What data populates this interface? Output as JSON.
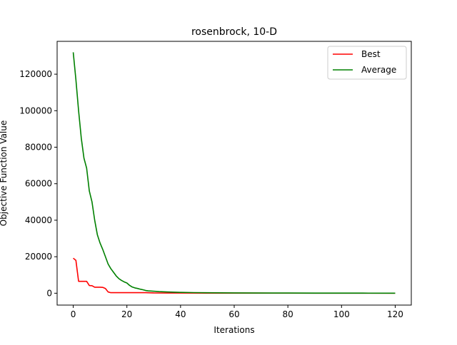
{
  "chart_data": {
    "type": "line",
    "title": "rosenbrock, 10-D",
    "xlabel": "Iterations",
    "ylabel": "Objective Function Value",
    "xlim": [
      -6,
      126
    ],
    "ylim": [
      -6500,
      138000
    ],
    "x_ticks": [
      0,
      20,
      40,
      60,
      80,
      100,
      120
    ],
    "y_ticks": [
      0,
      20000,
      40000,
      60000,
      80000,
      100000,
      120000
    ],
    "grid": false,
    "legend_position": "top-right",
    "series": [
      {
        "name": "Best",
        "color": "#ff0000",
        "points": [
          [
            0,
            19200
          ],
          [
            1,
            18000
          ],
          [
            2,
            6500
          ],
          [
            3,
            6500
          ],
          [
            4,
            6500
          ],
          [
            5,
            6500
          ],
          [
            6,
            4200
          ],
          [
            7,
            4100
          ],
          [
            8,
            3300
          ],
          [
            9,
            3300
          ],
          [
            10,
            3300
          ],
          [
            11,
            3200
          ],
          [
            12,
            2600
          ],
          [
            13,
            700
          ],
          [
            14,
            300
          ],
          [
            15,
            300
          ],
          [
            16,
            300
          ],
          [
            17,
            300
          ],
          [
            18,
            300
          ],
          [
            19,
            300
          ],
          [
            20,
            300
          ],
          [
            21,
            300
          ],
          [
            22,
            300
          ],
          [
            23,
            300
          ],
          [
            24,
            300
          ],
          [
            25,
            300
          ],
          [
            26,
            300
          ],
          [
            27,
            300
          ],
          [
            28,
            250
          ],
          [
            29,
            200
          ],
          [
            30,
            150
          ],
          [
            35,
            120
          ],
          [
            40,
            100
          ],
          [
            50,
            80
          ],
          [
            60,
            60
          ],
          [
            70,
            50
          ],
          [
            80,
            40
          ],
          [
            90,
            30
          ],
          [
            100,
            20
          ],
          [
            110,
            15
          ],
          [
            120,
            10
          ]
        ]
      },
      {
        "name": "Average",
        "color": "#008000",
        "points": [
          [
            0,
            132000
          ],
          [
            1,
            117000
          ],
          [
            2,
            100000
          ],
          [
            3,
            85000
          ],
          [
            4,
            74000
          ],
          [
            5,
            68500
          ],
          [
            6,
            56000
          ],
          [
            7,
            50000
          ],
          [
            8,
            40000
          ],
          [
            9,
            32000
          ],
          [
            10,
            27500
          ],
          [
            11,
            24000
          ],
          [
            12,
            20000
          ],
          [
            13,
            16000
          ],
          [
            14,
            13500
          ],
          [
            15,
            11500
          ],
          [
            16,
            9500
          ],
          [
            17,
            8000
          ],
          [
            18,
            7000
          ],
          [
            19,
            6200
          ],
          [
            20,
            5600
          ],
          [
            21,
            4300
          ],
          [
            22,
            3400
          ],
          [
            23,
            2900
          ],
          [
            24,
            2600
          ],
          [
            25,
            2200
          ],
          [
            26,
            1900
          ],
          [
            27,
            1500
          ],
          [
            28,
            1300
          ],
          [
            29,
            1200
          ],
          [
            30,
            1100
          ],
          [
            32,
            900
          ],
          [
            35,
            700
          ],
          [
            38,
            550
          ],
          [
            40,
            450
          ],
          [
            45,
            330
          ],
          [
            50,
            260
          ],
          [
            60,
            180
          ],
          [
            70,
            130
          ],
          [
            80,
            100
          ],
          [
            90,
            80
          ],
          [
            100,
            60
          ],
          [
            110,
            45
          ],
          [
            120,
            35
          ]
        ]
      }
    ]
  }
}
